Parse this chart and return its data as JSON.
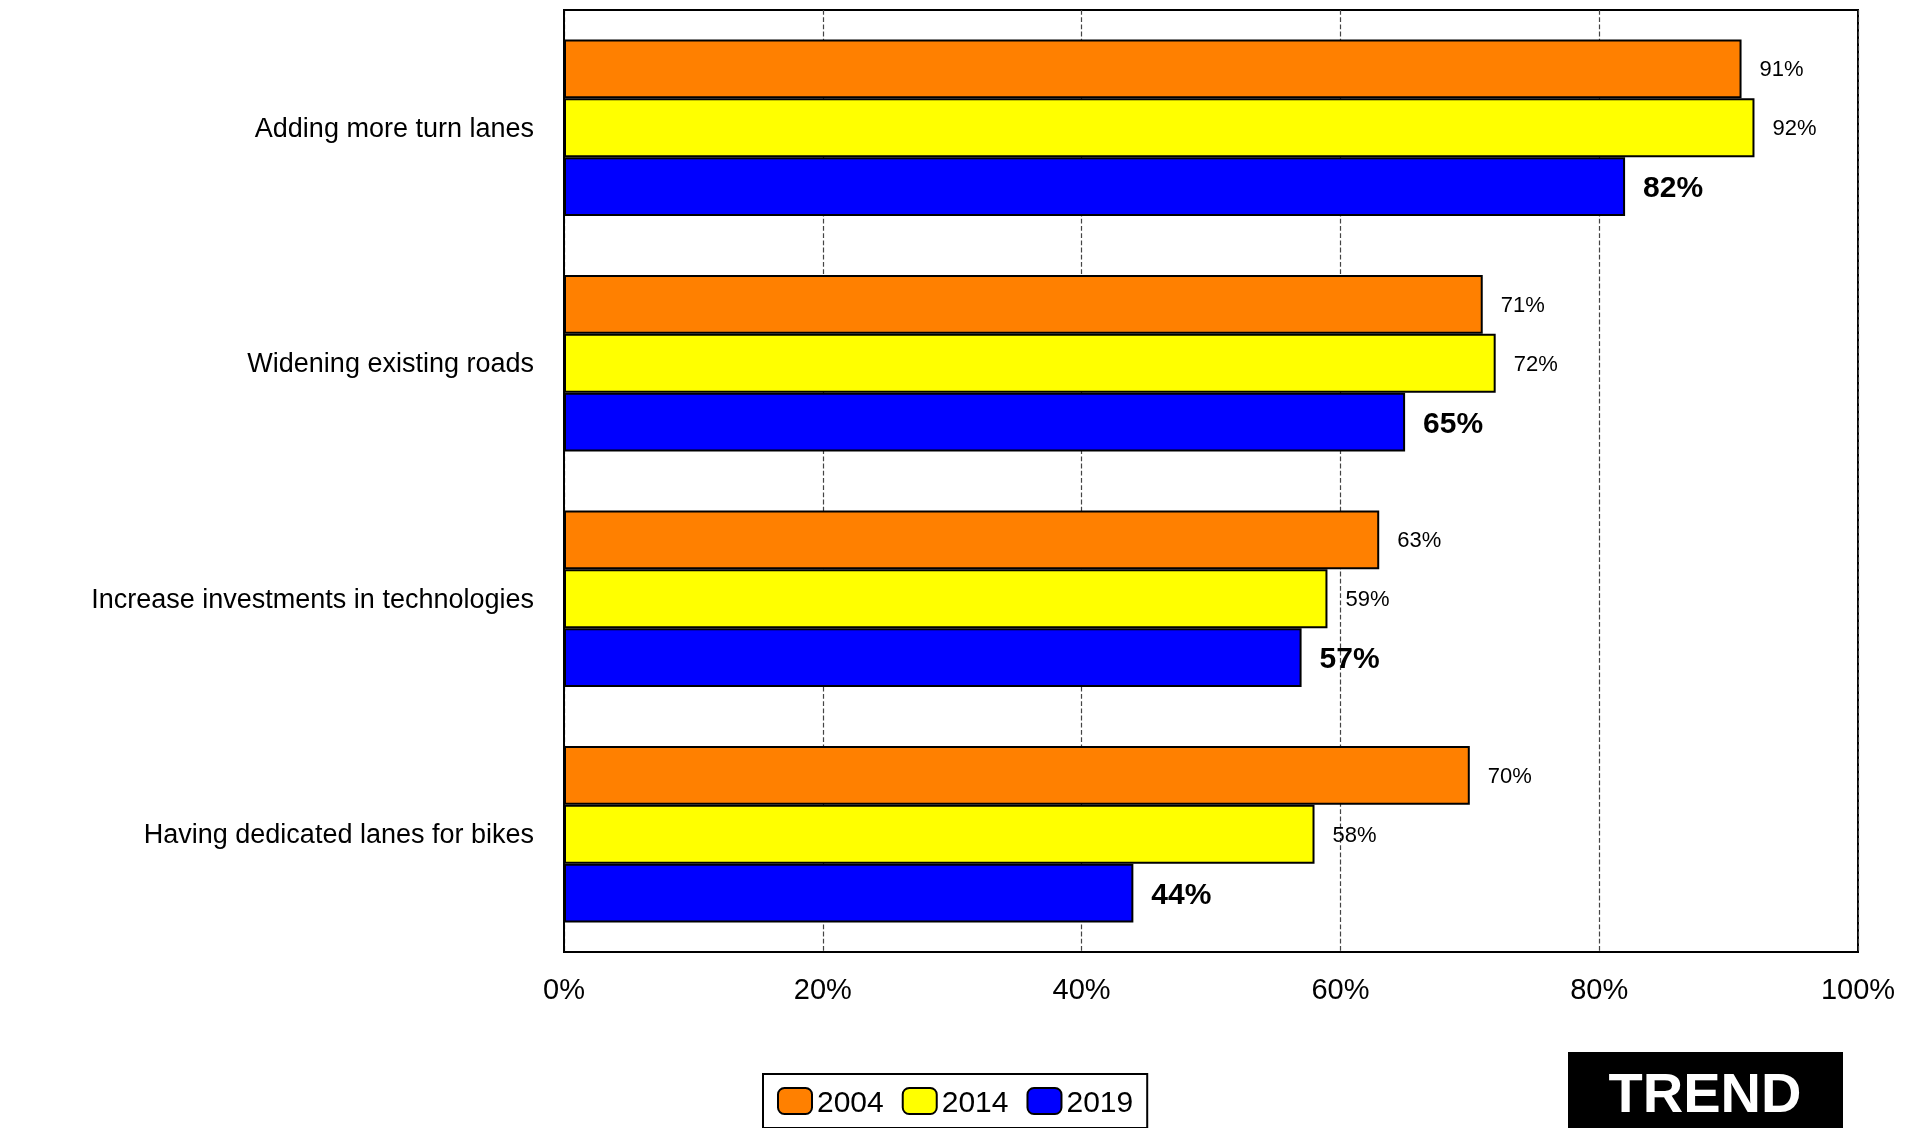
{
  "chart_data": {
    "type": "bar",
    "orientation": "horizontal",
    "categories": [
      "Adding more turn lanes",
      "Widening existing roads",
      "Increase investments in technologies",
      "Having dedicated lanes for bikes"
    ],
    "series": [
      {
        "name": "2004",
        "color": "#ff8000",
        "values": [
          91,
          71,
          63,
          70
        ],
        "value_labels": [
          "91%",
          "71%",
          "63%",
          "70%"
        ]
      },
      {
        "name": "2014",
        "color": "#ffff00",
        "values": [
          92,
          72,
          59,
          58
        ],
        "value_labels": [
          "92%",
          "72%",
          "59%",
          "58%"
        ]
      },
      {
        "name": "2019",
        "color": "#0000ff",
        "values": [
          82,
          65,
          57,
          44
        ],
        "value_labels": [
          "82%",
          "65%",
          "57%",
          "44%"
        ]
      }
    ],
    "xlim": [
      0,
      100
    ],
    "xticks": [
      {
        "value": 0,
        "label": "0%"
      },
      {
        "value": 20,
        "label": "20%"
      },
      {
        "value": 40,
        "label": "40%"
      },
      {
        "value": 60,
        "label": "60%"
      },
      {
        "value": 80,
        "label": "80%"
      },
      {
        "value": 100,
        "label": "100%"
      }
    ],
    "grid": "x",
    "line_style": "dashed",
    "legend": "bottom",
    "annotations": [
      "TREND"
    ]
  }
}
